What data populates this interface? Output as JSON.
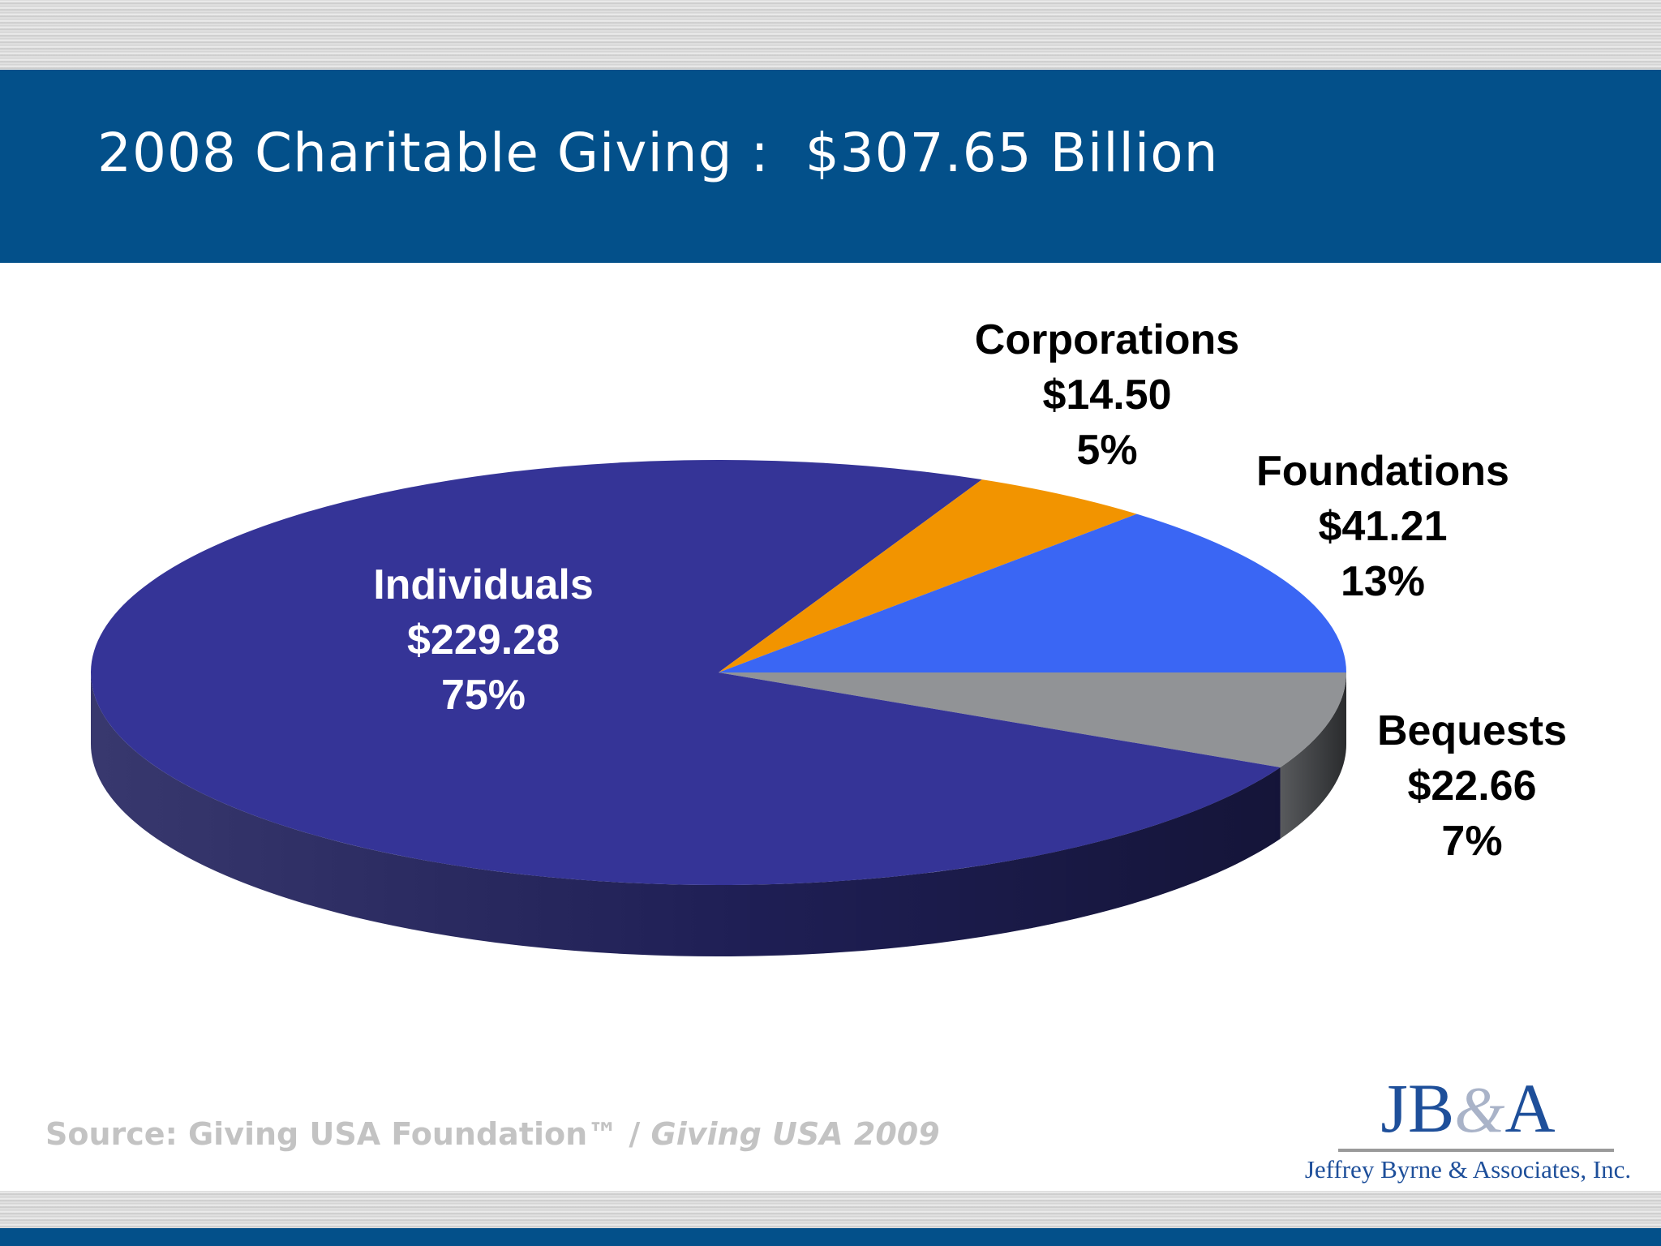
{
  "slide": {
    "title": "2008 Charitable Giving :  $307.65 Billion",
    "source": {
      "prefix": "Source: Giving USA Foundation™ / ",
      "publication": "Giving USA 2009"
    },
    "logo": {
      "mark_left": "JB",
      "mark_amp": "&",
      "mark_right": "A",
      "company": "Jeffrey Byrne & Associates, Inc."
    }
  },
  "chart_data": {
    "type": "pie",
    "title": "2008 Charitable Giving :  $307.65 Billion",
    "total": 307.65,
    "start_angle_deg": 0,
    "direction": "clockwise",
    "slices": [
      {
        "label": "Bequests",
        "value": 22.66,
        "value_label": "$22.66",
        "percent": 7,
        "percent_label": "7%",
        "color": "#919396",
        "side_color": "#46484b"
      },
      {
        "label": "Individuals",
        "value": 229.28,
        "value_label": "$229.28",
        "percent": 75,
        "percent_label": "75%",
        "color": "#353497",
        "side_color": "#22225e"
      },
      {
        "label": "Corporations",
        "value": 14.5,
        "value_label": "$14.50",
        "percent": 5,
        "percent_label": "5%",
        "color": "#f29400",
        "side_color": "#a66500"
      },
      {
        "label": "Foundations",
        "value": 41.21,
        "value_label": "$41.21",
        "percent": 13,
        "percent_label": "13%",
        "color": "#3a66f4",
        "side_color": "#2a46a8"
      }
    ]
  }
}
